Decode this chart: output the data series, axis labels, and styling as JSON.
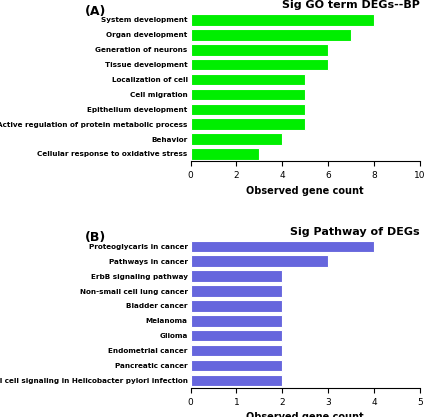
{
  "panel_A": {
    "title": "Sig GO term DEGs--BP",
    "categories": [
      "Cellular response to oxidative stress",
      "Behavior",
      "Active regulation of protein metabolic process",
      "Epithelium development",
      "Cell migration",
      "Localization of cell",
      "Tissue development",
      "Generation of neurons",
      "Organ development",
      "System development"
    ],
    "values": [
      3,
      4,
      5,
      5,
      5,
      5,
      6,
      6,
      7,
      8
    ],
    "bar_color": "#00ee00",
    "xlabel": "Observed gene count",
    "xlim": [
      0,
      10
    ],
    "xticks": [
      0,
      2,
      4,
      6,
      8,
      10
    ],
    "label": "(A)"
  },
  "panel_B": {
    "title": "Sig Pathway of DEGs",
    "categories": [
      "Elial cell signaling in Helicobacter pylori infection",
      "Pancreatic cancer",
      "Endometrial cancer",
      "Glioma",
      "Melanoma",
      "Bladder cancer",
      "Non-small cell lung cancer",
      "ErbB signaling pathway",
      "Pathways in cancer",
      "Proteoglycaris in cancer"
    ],
    "values": [
      2,
      2,
      2,
      2,
      2,
      2,
      2,
      2,
      3,
      4
    ],
    "bar_color": "#6666dd",
    "xlabel": "Observed gene count",
    "xlim": [
      0,
      5
    ],
    "xticks": [
      0,
      1,
      2,
      3,
      4,
      5
    ],
    "label": "(B)"
  }
}
